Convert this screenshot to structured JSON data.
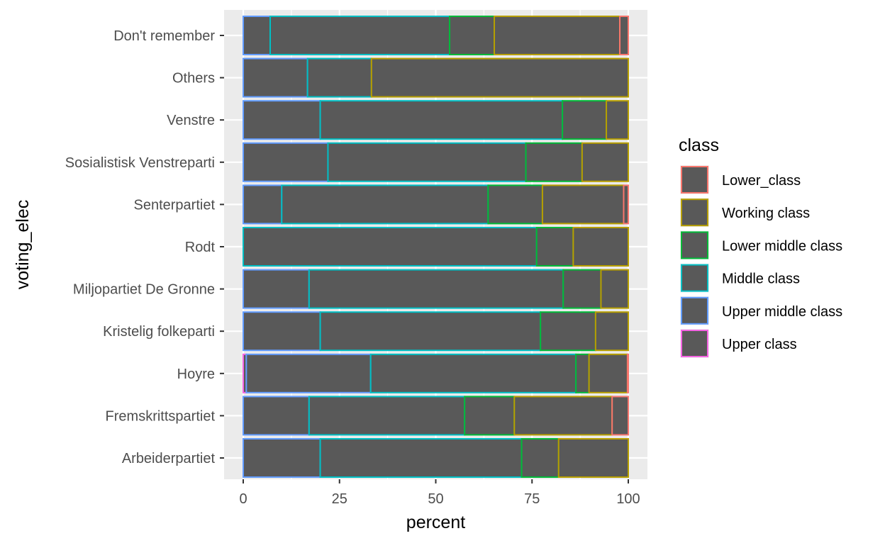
{
  "chart_data": {
    "type": "bar",
    "orientation": "horizontal",
    "stacked": true,
    "xlabel": "percent",
    "ylabel": "voting_elec",
    "xlim": [
      0,
      100
    ],
    "x_ticks": [
      0,
      25,
      50,
      75,
      100
    ],
    "grid": true,
    "legend_position": "right",
    "legend_title": "class",
    "bar_fill": "#595959",
    "panel_background": "#ebebeb",
    "categories": [
      "Don't remember",
      "Others",
      "Venstre",
      "Sosialistisk Venstreparti",
      "Senterpartiet",
      "Rodt",
      "Miljopartiet De Gronne",
      "Kristelig folkeparti",
      "Hoyre",
      "Fremskrittspartiet",
      "Arbeiderpartiet"
    ],
    "series": [
      {
        "name": "Upper class",
        "color": "#F564E3",
        "values": [
          0,
          0,
          0,
          0,
          0,
          0,
          0,
          0,
          0.8,
          0,
          0
        ]
      },
      {
        "name": "Upper middle class",
        "color": "#619CFF",
        "values": [
          7.0,
          16.7,
          20.0,
          22.0,
          10.0,
          0,
          17.1,
          20.0,
          32.3,
          17.1,
          20.0
        ]
      },
      {
        "name": "Middle class",
        "color": "#00BFC4",
        "values": [
          46.6,
          16.6,
          62.9,
          51.4,
          53.6,
          76.2,
          66.0,
          57.2,
          53.3,
          40.4,
          52.3
        ]
      },
      {
        "name": "Lower middle class",
        "color": "#00BA38",
        "values": [
          11.6,
          0,
          11.4,
          14.6,
          14.1,
          9.5,
          9.8,
          14.3,
          3.4,
          12.9,
          9.6
        ]
      },
      {
        "name": "Working class",
        "color": "#B79F00",
        "values": [
          32.6,
          66.7,
          5.7,
          12.0,
          21.1,
          14.3,
          7.1,
          8.5,
          10.0,
          25.4,
          18.1
        ]
      },
      {
        "name": "Lower_class",
        "color": "#F8766D",
        "values": [
          2.2,
          0,
          0,
          0,
          1.2,
          0,
          0,
          0,
          0.2,
          4.2,
          0
        ]
      }
    ],
    "legend_order": [
      "Lower_class",
      "Working class",
      "Lower middle class",
      "Middle class",
      "Upper middle class",
      "Upper class"
    ]
  }
}
